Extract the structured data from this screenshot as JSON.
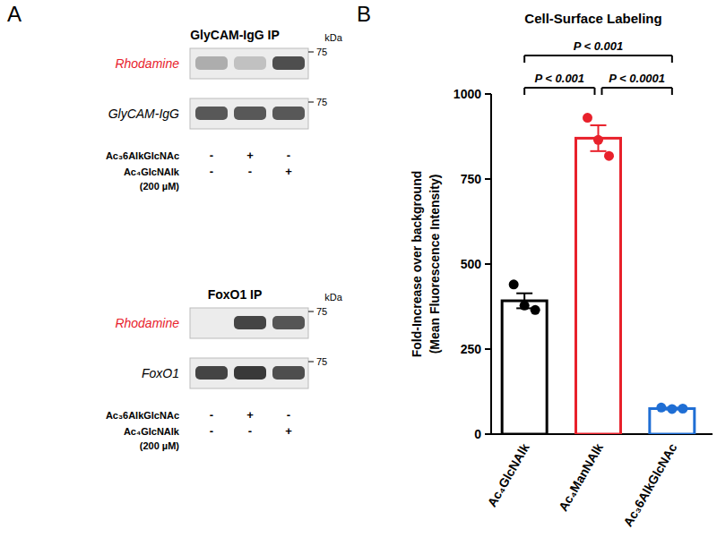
{
  "panel_labels": [
    "A",
    "B"
  ],
  "blots": [
    {
      "title": "GlyCAM-IgG IP",
      "kda_label": "kDa",
      "rows": [
        {
          "label": "Rhodamine",
          "color": "#e8212b",
          "marker": 75,
          "intensity": [
            0.3,
            0.2,
            0.75
          ]
        },
        {
          "label": "GlyCAM-IgG",
          "color": "#000000",
          "marker": 75,
          "intensity": [
            0.7,
            0.7,
            0.7
          ]
        }
      ],
      "treatments": [
        {
          "name": "Ac₃6AlkGlcNAc",
          "signs": [
            "-",
            "+",
            "-"
          ]
        },
        {
          "name": "Ac₄GlcNAlk",
          "dose": "(200 µM)",
          "signs": [
            "-",
            "-",
            "+"
          ]
        }
      ]
    },
    {
      "title": "FoxO1 IP",
      "kda_label": "kDa",
      "rows": [
        {
          "label": "Rhodamine",
          "color": "#e8212b",
          "marker": 75,
          "intensity": [
            0.0,
            0.8,
            0.72
          ]
        },
        {
          "label": "FoxO1",
          "color": "#000000",
          "marker": 75,
          "intensity": [
            0.8,
            0.85,
            0.75
          ]
        }
      ],
      "treatments": [
        {
          "name": "Ac₃6AlkGlcNAc",
          "signs": [
            "-",
            "+",
            "-"
          ]
        },
        {
          "name": "Ac₄GlcNAlk",
          "dose": "(200 µM)",
          "signs": [
            "-",
            "-",
            "+"
          ]
        }
      ]
    }
  ],
  "chart_data": {
    "type": "bar",
    "title": "Cell-Surface Labeling",
    "y_label": [
      "Fold-Increase over background",
      "(Mean Fluorescence Intensity)"
    ],
    "categories": [
      "Ac₄GlcNAlk",
      "Ac₄ManNAlk",
      "Ac₃6AlkGlcNAc"
    ],
    "values": [
      392,
      870,
      75
    ],
    "errors": [
      22,
      38,
      3
    ],
    "points": [
      [
        440,
        378,
        365
      ],
      [
        930,
        865,
        818
      ],
      [
        78,
        74,
        75
      ]
    ],
    "colors": [
      "#000000",
      "#e8212b",
      "#1f6ed4"
    ],
    "ylim": [
      0,
      1000
    ],
    "yticks": [
      0,
      250,
      500,
      750,
      1000
    ],
    "annotations": [
      {
        "from": 0,
        "to": 1,
        "label": "P < 0.001"
      },
      {
        "from": 1,
        "to": 2,
        "label": "P < 0.0001"
      },
      {
        "from": 0,
        "to": 2,
        "label": "P < 0.001"
      }
    ]
  }
}
